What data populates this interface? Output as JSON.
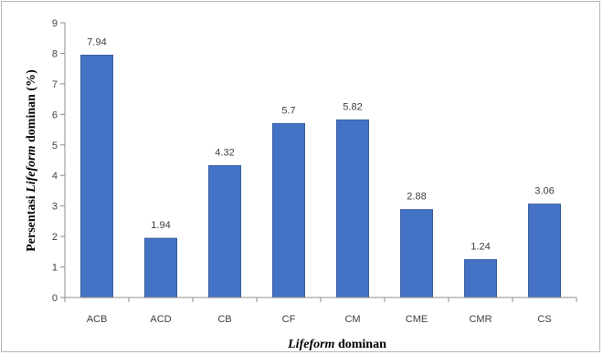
{
  "chart_data": {
    "type": "bar",
    "categories": [
      "ACB",
      "ACD",
      "CB",
      "CF",
      "CM",
      "CME",
      "CMR",
      "CS"
    ],
    "values": [
      7.94,
      1.94,
      4.32,
      5.7,
      5.82,
      2.88,
      1.24,
      3.06
    ],
    "data_labels": [
      "7.94",
      "1.94",
      "4.32",
      "5.7",
      "5.82",
      "2.88",
      "1.24",
      "3.06"
    ],
    "ylim": [
      0,
      9
    ],
    "yticks": [
      "0",
      "1",
      "2",
      "3",
      "4",
      "5",
      "6",
      "7",
      "8",
      "9"
    ],
    "xlabel": {
      "italic": "Lifeform",
      "rest": " dominan"
    },
    "ylabel": {
      "prefix": "Persentasi ",
      "italic": "Lifeform",
      "rest": " dominan (%)"
    },
    "grid": false,
    "legend": "none",
    "bar_color": "#4472c4",
    "bar_edge_color": "#3a5f9f"
  }
}
